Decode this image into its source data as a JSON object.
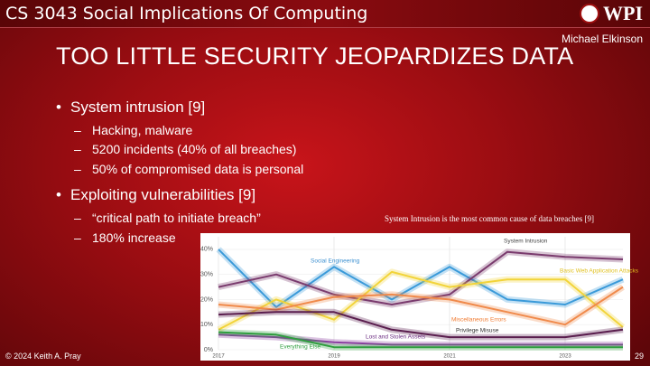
{
  "header": {
    "course": "CS 3043 Social Implications Of Computing",
    "logo": "WPI",
    "author": "Michael Elkinson"
  },
  "slide": {
    "title": "TOO LITTLE SECURITY JEOPARDIZES DATA",
    "bullets": [
      {
        "text": "System intrusion [9]",
        "sub": [
          "Hacking, malware",
          "5200 incidents (40% of all breaches)",
          "50% of compromised data is personal"
        ]
      },
      {
        "text": "Exploiting vulnerabilities [9]",
        "sub": [
          "“critical path to initiate breach”",
          "180% increase"
        ]
      }
    ]
  },
  "footer": {
    "copyright": "© 2024 Keith A. Pray",
    "page": "29"
  },
  "chart_data": {
    "type": "line",
    "title": "System Intrusion is the most common cause of data breaches [9]",
    "x": [
      2017,
      2018,
      2019,
      2020,
      2021,
      2022,
      2023,
      2024
    ],
    "xlim": [
      2017,
      2024
    ],
    "xticks": [
      2017,
      2019,
      2021,
      2023
    ],
    "ylim": [
      0,
      45
    ],
    "yticks": [
      {
        "value": 0,
        "label": "0%"
      },
      {
        "value": 10,
        "label": "10%"
      },
      {
        "value": 20,
        "label": "20%"
      },
      {
        "value": 30,
        "label": "30%"
      },
      {
        "value": 40,
        "label": "40%"
      }
    ],
    "grid": true,
    "series": [
      {
        "name": "Social Engineering",
        "color": "#3a9ad9",
        "values": [
          40,
          17,
          33,
          20,
          33,
          20,
          18,
          28
        ]
      },
      {
        "name": "System Intrusion",
        "color": "#7a3b6e",
        "values": [
          25,
          30,
          22,
          18,
          22,
          39,
          37,
          36
        ]
      },
      {
        "name": "Basic Web Application Attacks",
        "color": "#f2d43a",
        "values": [
          8,
          20,
          12,
          31,
          25,
          28,
          28,
          9
        ]
      },
      {
        "name": "Miscellaneous Errors",
        "color": "#f08a4b",
        "values": [
          18,
          16,
          21,
          22,
          20,
          15,
          10,
          25
        ]
      },
      {
        "name": "Privilege Misuse",
        "color": "#5a1e4e",
        "values": [
          14,
          15,
          15,
          8,
          5,
          5,
          5,
          8
        ]
      },
      {
        "name": "Lost and Stolen Assets",
        "color": "#8a3ea0",
        "values": [
          6,
          5,
          3,
          2,
          2,
          2,
          2,
          2
        ]
      },
      {
        "name": "Everything Else",
        "color": "#2e9e3e",
        "values": [
          7,
          6,
          1,
          1,
          1,
          1,
          1,
          1
        ]
      }
    ]
  }
}
